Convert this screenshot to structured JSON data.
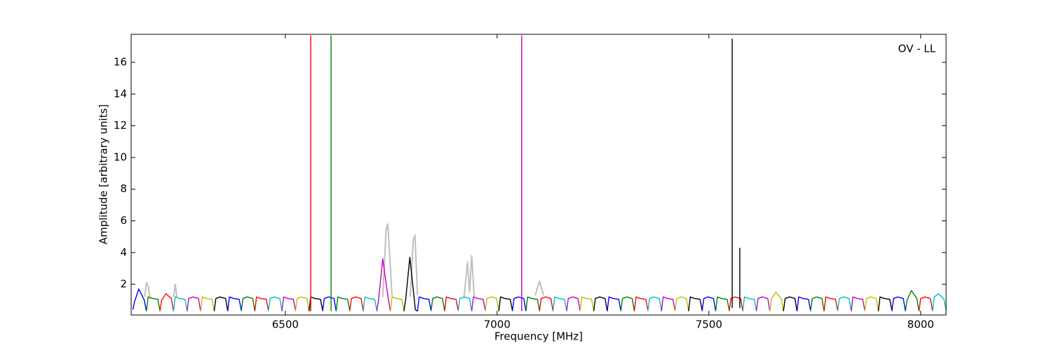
{
  "chart_data": {
    "type": "line",
    "annotation": "OV - LL",
    "xlabel": "Frequency [MHz]",
    "ylabel": "Amplitude [arbitrary units]",
    "xlim": [
      6136,
      8060
    ],
    "ylim": [
      0.06,
      17.77
    ],
    "xticks": [
      6500,
      7000,
      7500,
      8000
    ],
    "yticks": [
      2,
      4,
      6,
      8,
      10,
      12,
      14,
      16
    ],
    "series": [
      {
        "color": "#bfbfbf",
        "x": [
          6168,
          6172,
          6176,
          6180,
          6181,
          6236,
          6240,
          6244,
          6245,
          6730,
          6738,
          6742,
          6746,
          6752,
          6753,
          6795,
          6802,
          6806,
          6812,
          6813,
          6922,
          6930,
          6935,
          6940,
          6946,
          6947,
          7090,
          7100,
          7110
        ],
        "values": [
          1.2,
          2.1,
          1.9,
          1.2,
          null,
          1.2,
          2.0,
          1.2,
          null,
          1.2,
          5.5,
          5.8,
          4.0,
          1.2,
          null,
          1.2,
          4.8,
          5.1,
          1.3,
          null,
          1.2,
          3.4,
          1.5,
          3.8,
          1.2,
          null,
          1.3,
          2.2,
          1.3
        ]
      },
      {
        "color": "#0000ff",
        "x": [
          6140,
          6144,
          6154,
          6167,
          6172
        ],
        "values": [
          0.4,
          0.9,
          1.7,
          1.0,
          0.3
        ]
      },
      {
        "color": "#008000",
        "x": [
          6172,
          6176,
          6186,
          6199,
          6204
        ],
        "values": [
          0.3,
          1.2,
          1.1,
          1.05,
          0.35
        ]
      },
      {
        "color": "#ff0000",
        "x": [
          6204,
          6208,
          6218,
          6231,
          6236
        ],
        "values": [
          0.3,
          1.0,
          1.4,
          1.1,
          0.3
        ]
      },
      {
        "color": "#00bfbf",
        "x": [
          6236,
          6240,
          6250,
          6263,
          6268
        ],
        "values": [
          0.3,
          1.2,
          1.1,
          1.05,
          0.35
        ]
      },
      {
        "color": "#bf00bf",
        "x": [
          6268,
          6272,
          6282,
          6295,
          6300
        ],
        "values": [
          0.3,
          1.1,
          1.2,
          1.1,
          0.3
        ]
      },
      {
        "color": "#bfbf00",
        "x": [
          6300,
          6304,
          6314,
          6327,
          6332
        ],
        "values": [
          0.3,
          1.2,
          1.1,
          1.05,
          0.35
        ]
      },
      {
        "color": "#000000",
        "x": [
          6332,
          6336,
          6346,
          6359,
          6364
        ],
        "values": [
          0.3,
          1.1,
          1.2,
          1.1,
          0.3
        ]
      },
      {
        "color": "#0000ff",
        "x": [
          6364,
          6368,
          6378,
          6391,
          6396
        ],
        "values": [
          0.3,
          1.2,
          1.1,
          1.05,
          0.35
        ]
      },
      {
        "color": "#008000",
        "x": [
          6396,
          6400,
          6410,
          6423,
          6428
        ],
        "values": [
          0.3,
          1.1,
          1.2,
          1.1,
          0.3
        ]
      },
      {
        "color": "#ff0000",
        "x": [
          6428,
          6432,
          6442,
          6455,
          6460
        ],
        "values": [
          0.3,
          1.2,
          1.1,
          1.05,
          0.35
        ]
      },
      {
        "color": "#00bfbf",
        "x": [
          6460,
          6464,
          6474,
          6487,
          6492
        ],
        "values": [
          0.3,
          1.1,
          1.2,
          1.1,
          0.3
        ]
      },
      {
        "color": "#bf00bf",
        "x": [
          6492,
          6496,
          6506,
          6519,
          6524
        ],
        "values": [
          0.3,
          1.2,
          1.1,
          1.05,
          0.35
        ]
      },
      {
        "color": "#bfbf00",
        "x": [
          6524,
          6528,
          6538,
          6551,
          6556
        ],
        "values": [
          0.3,
          1.1,
          1.2,
          1.1,
          0.3
        ]
      },
      {
        "color": "#000000",
        "x": [
          6556,
          6560,
          6570,
          6583,
          6588
        ],
        "values": [
          0.3,
          1.2,
          1.1,
          1.05,
          0.35
        ]
      },
      {
        "color": "#0000ff",
        "x": [
          6588,
          6592,
          6602,
          6615,
          6620
        ],
        "values": [
          0.3,
          1.1,
          1.2,
          1.1,
          0.3
        ]
      },
      {
        "color": "#008000",
        "x": [
          6620,
          6624,
          6634,
          6647,
          6652
        ],
        "values": [
          0.3,
          1.2,
          1.1,
          1.05,
          0.35
        ]
      },
      {
        "color": "#ff0000",
        "x": [
          6652,
          6656,
          6666,
          6679,
          6684
        ],
        "values": [
          0.3,
          1.1,
          1.2,
          1.1,
          0.3
        ]
      },
      {
        "color": "#00bfbf",
        "x": [
          6684,
          6688,
          6698,
          6711,
          6716
        ],
        "values": [
          0.3,
          1.2,
          1.1,
          1.05,
          0.35
        ]
      },
      {
        "color": "#bf00bf",
        "x": [
          6716,
          6720,
          6730,
          6743,
          6748
        ],
        "values": [
          0.3,
          1.0,
          3.6,
          1.1,
          0.3
        ]
      },
      {
        "color": "#bfbf00",
        "x": [
          6748,
          6752,
          6762,
          6775,
          6780
        ],
        "values": [
          0.3,
          1.2,
          1.1,
          1.05,
          0.35
        ]
      },
      {
        "color": "#000000",
        "x": [
          6780,
          6784,
          6794,
          6807,
          6812
        ],
        "values": [
          0.3,
          1.0,
          3.7,
          0.4,
          0.3
        ]
      },
      {
        "color": "#0000ff",
        "x": [
          6812,
          6816,
          6826,
          6839,
          6844
        ],
        "values": [
          0.3,
          1.2,
          1.1,
          1.05,
          0.35
        ]
      },
      {
        "color": "#008000",
        "x": [
          6844,
          6848,
          6858,
          6871,
          6876
        ],
        "values": [
          0.3,
          1.1,
          1.2,
          1.1,
          0.3
        ]
      },
      {
        "color": "#ff0000",
        "x": [
          6876,
          6880,
          6890,
          6903,
          6908
        ],
        "values": [
          0.3,
          1.2,
          1.1,
          1.05,
          0.35
        ]
      },
      {
        "color": "#00bfbf",
        "x": [
          6908,
          6912,
          6922,
          6935,
          6940
        ],
        "values": [
          0.3,
          1.1,
          1.2,
          1.1,
          0.3
        ]
      },
      {
        "color": "#bf00bf",
        "x": [
          6940,
          6944,
          6954,
          6967,
          6972
        ],
        "values": [
          0.3,
          1.2,
          1.1,
          1.05,
          0.35
        ]
      },
      {
        "color": "#bfbf00",
        "x": [
          6972,
          6976,
          6986,
          6999,
          7004
        ],
        "values": [
          0.3,
          1.1,
          1.2,
          1.1,
          0.3
        ]
      },
      {
        "color": "#000000",
        "x": [
          7004,
          7008,
          7018,
          7031,
          7036
        ],
        "values": [
          0.3,
          1.2,
          1.1,
          1.05,
          0.35
        ]
      },
      {
        "color": "#0000ff",
        "x": [
          7036,
          7040,
          7050,
          7063,
          7068
        ],
        "values": [
          0.3,
          1.1,
          1.2,
          1.1,
          0.3
        ]
      },
      {
        "color": "#008000",
        "x": [
          7068,
          7072,
          7082,
          7095,
          7100
        ],
        "values": [
          0.3,
          1.2,
          1.1,
          1.05,
          0.35
        ]
      },
      {
        "color": "#ff0000",
        "x": [
          7100,
          7104,
          7114,
          7127,
          7132
        ],
        "values": [
          0.3,
          1.1,
          1.2,
          1.1,
          0.3
        ]
      },
      {
        "color": "#00bfbf",
        "x": [
          7132,
          7136,
          7146,
          7159,
          7164
        ],
        "values": [
          0.3,
          1.2,
          1.1,
          1.05,
          0.35
        ]
      },
      {
        "color": "#bf00bf",
        "x": [
          7164,
          7168,
          7178,
          7191,
          7196
        ],
        "values": [
          0.3,
          1.1,
          1.2,
          1.1,
          0.3
        ]
      },
      {
        "color": "#bfbf00",
        "x": [
          7196,
          7200,
          7210,
          7223,
          7228
        ],
        "values": [
          0.3,
          1.2,
          1.1,
          1.05,
          0.35
        ]
      },
      {
        "color": "#000000",
        "x": [
          7228,
          7232,
          7242,
          7255,
          7260
        ],
        "values": [
          0.3,
          1.1,
          1.2,
          1.1,
          0.3
        ]
      },
      {
        "color": "#0000ff",
        "x": [
          7260,
          7264,
          7274,
          7287,
          7292
        ],
        "values": [
          0.3,
          1.2,
          1.1,
          1.05,
          0.35
        ]
      },
      {
        "color": "#008000",
        "x": [
          7292,
          7296,
          7306,
          7319,
          7324
        ],
        "values": [
          0.3,
          1.1,
          1.2,
          1.1,
          0.3
        ]
      },
      {
        "color": "#ff0000",
        "x": [
          7324,
          7328,
          7338,
          7351,
          7356
        ],
        "values": [
          0.3,
          1.2,
          1.1,
          1.05,
          0.35
        ]
      },
      {
        "color": "#00bfbf",
        "x": [
          7356,
          7360,
          7370,
          7383,
          7388
        ],
        "values": [
          0.3,
          1.1,
          1.2,
          1.1,
          0.3
        ]
      },
      {
        "color": "#bf00bf",
        "x": [
          7388,
          7392,
          7402,
          7415,
          7420
        ],
        "values": [
          0.3,
          1.2,
          1.1,
          1.05,
          0.35
        ]
      },
      {
        "color": "#bfbf00",
        "x": [
          7420,
          7424,
          7434,
          7447,
          7452
        ],
        "values": [
          0.3,
          1.1,
          1.2,
          1.1,
          0.3
        ]
      },
      {
        "color": "#000000",
        "x": [
          7452,
          7456,
          7466,
          7479,
          7484
        ],
        "values": [
          0.3,
          1.2,
          1.1,
          1.05,
          0.35
        ]
      },
      {
        "color": "#0000ff",
        "x": [
          7484,
          7488,
          7498,
          7511,
          7516
        ],
        "values": [
          0.3,
          1.1,
          1.2,
          1.1,
          0.3
        ]
      },
      {
        "color": "#008000",
        "x": [
          7516,
          7520,
          7530,
          7543,
          7548
        ],
        "values": [
          0.3,
          1.2,
          1.1,
          1.05,
          0.35
        ]
      },
      {
        "color": "#ff0000",
        "x": [
          7548,
          7552,
          7562,
          7575,
          7580
        ],
        "values": [
          0.3,
          1.1,
          1.2,
          1.1,
          0.3
        ]
      },
      {
        "color": "#00bfbf",
        "x": [
          7580,
          7584,
          7594,
          7607,
          7612
        ],
        "values": [
          0.3,
          1.2,
          1.1,
          1.05,
          0.35
        ]
      },
      {
        "color": "#bf00bf",
        "x": [
          7612,
          7616,
          7626,
          7639,
          7644
        ],
        "values": [
          0.3,
          1.1,
          1.2,
          1.1,
          0.3
        ]
      },
      {
        "color": "#bfbf00",
        "x": [
          7644,
          7648,
          7658,
          7671,
          7676
        ],
        "values": [
          0.3,
          1.1,
          1.5,
          1.1,
          0.3
        ]
      },
      {
        "color": "#000000",
        "x": [
          7676,
          7680,
          7690,
          7703,
          7708
        ],
        "values": [
          0.3,
          1.1,
          1.2,
          1.1,
          0.3
        ]
      },
      {
        "color": "#0000ff",
        "x": [
          7708,
          7712,
          7722,
          7735,
          7740
        ],
        "values": [
          0.3,
          1.2,
          1.1,
          1.05,
          0.35
        ]
      },
      {
        "color": "#008000",
        "x": [
          7740,
          7744,
          7754,
          7767,
          7772
        ],
        "values": [
          0.3,
          1.1,
          1.2,
          1.1,
          0.3
        ]
      },
      {
        "color": "#ff0000",
        "x": [
          7772,
          7776,
          7786,
          7799,
          7804
        ],
        "values": [
          0.3,
          1.2,
          1.1,
          1.05,
          0.35
        ]
      },
      {
        "color": "#00bfbf",
        "x": [
          7804,
          7808,
          7818,
          7831,
          7836
        ],
        "values": [
          0.3,
          1.1,
          1.2,
          1.1,
          0.3
        ]
      },
      {
        "color": "#bf00bf",
        "x": [
          7836,
          7840,
          7850,
          7863,
          7868
        ],
        "values": [
          0.3,
          1.2,
          1.1,
          1.05,
          0.35
        ]
      },
      {
        "color": "#bfbf00",
        "x": [
          7868,
          7872,
          7882,
          7895,
          7900
        ],
        "values": [
          0.3,
          1.1,
          1.2,
          1.1,
          0.3
        ]
      },
      {
        "color": "#000000",
        "x": [
          7900,
          7904,
          7914,
          7927,
          7932
        ],
        "values": [
          0.3,
          1.2,
          1.1,
          1.05,
          0.35
        ]
      },
      {
        "color": "#0000ff",
        "x": [
          7932,
          7936,
          7946,
          7959,
          7964
        ],
        "values": [
          0.3,
          1.1,
          1.2,
          1.1,
          0.3
        ]
      },
      {
        "color": "#008000",
        "x": [
          7964,
          7968,
          7978,
          7991,
          7996
        ],
        "values": [
          0.3,
          1.0,
          1.6,
          1.1,
          0.3
        ]
      },
      {
        "color": "#ff0000",
        "x": [
          7996,
          8000,
          8010,
          8023,
          8028
        ],
        "values": [
          0.3,
          1.1,
          1.2,
          1.1,
          0.3
        ]
      },
      {
        "color": "#00bfbf",
        "x": [
          8028,
          8032,
          8042,
          8055,
          8060
        ],
        "values": [
          0.3,
          1.2,
          1.4,
          1.05,
          0.35
        ]
      },
      {
        "color": "#ff0000",
        "x": [
          6560,
          6560
        ],
        "values": [
          0.3,
          17.7
        ]
      },
      {
        "color": "#008000",
        "x": [
          6608,
          6608
        ],
        "values": [
          0.3,
          17.7
        ]
      },
      {
        "color": "#bf00bf",
        "x": [
          7058,
          7058
        ],
        "values": [
          0.3,
          17.7
        ]
      },
      {
        "color": "#000000",
        "x": [
          7555,
          7555
        ],
        "values": [
          0.5,
          17.5
        ]
      },
      {
        "color": "#000000",
        "x": [
          7573,
          7573
        ],
        "values": [
          0.5,
          4.3
        ]
      }
    ]
  }
}
